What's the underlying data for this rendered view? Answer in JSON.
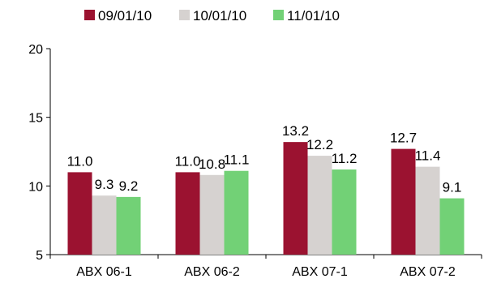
{
  "chart_data": {
    "type": "bar",
    "title": "",
    "xlabel": "",
    "ylabel": "",
    "categories": [
      "ABX 06-1",
      "ABX 06-2",
      "ABX 07-1",
      "ABX 07-2"
    ],
    "series": [
      {
        "name": "09/01/10",
        "color": "#9b1230",
        "values": [
          11.0,
          11.0,
          13.2,
          12.7
        ],
        "labels": [
          "11.0",
          "11.0",
          "13.2",
          "12.7"
        ]
      },
      {
        "name": "10/01/10",
        "color": "#d6d2d0",
        "values": [
          9.3,
          10.8,
          12.2,
          11.4
        ],
        "labels": [
          "9.3",
          "10.8",
          "12.2",
          "11.4"
        ]
      },
      {
        "name": "11/01/10",
        "color": "#72d176",
        "values": [
          9.2,
          11.1,
          11.2,
          9.1
        ],
        "labels": [
          "9.2",
          "11.1",
          "11.2",
          "9.1"
        ]
      }
    ],
    "ylim": [
      5,
      20
    ],
    "yticks": [
      "5",
      "10",
      "15",
      "20"
    ],
    "grid": false,
    "legend_position": "top"
  }
}
